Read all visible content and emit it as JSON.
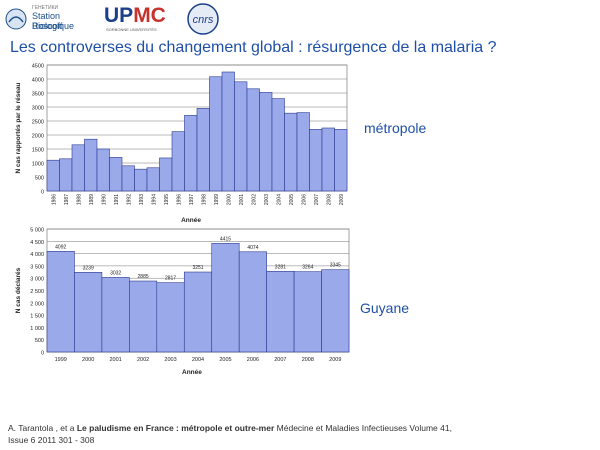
{
  "header": {
    "logo_sbr": {
      "line1": "Station Biologique",
      "line2": "Roscoff",
      "small": "ГЕНЕТИКИ"
    },
    "logo_upmc": {
      "text": "UPMC",
      "sub": "SORBONNE UNIVERSITÉS"
    },
    "logo_cnrs": {
      "text": "cnrs"
    }
  },
  "title": "Les controverses du changement global : résurgence de la malaria ?",
  "labels": {
    "metropole": "métropole",
    "guyane": "Guyane"
  },
  "citation": {
    "authors": "A.  Tarantola ,  et a",
    "title": "Le paludisme en France : métropole et outre-mer",
    "journal": "Médecine et Maladies Infectieuses Volume 41,",
    "issue": "Issue 6 2011 301 - 308"
  },
  "colors": {
    "bar_fill": "#9aa9ea",
    "bar_stroke": "#2b3a8f",
    "title": "#1f4fa8"
  },
  "chart_data": [
    {
      "type": "bar",
      "title": "",
      "xlabel": "Année",
      "ylabel": "N cas rapportés par le réseau",
      "ylim": [
        0,
        4500
      ],
      "yticks": [
        0,
        500,
        1000,
        1500,
        2000,
        2500,
        3000,
        3500,
        4000,
        4500
      ],
      "ytick_labels": [
        "0",
        "500",
        "1000",
        "1500",
        "2000",
        "2500",
        "3000",
        "3500",
        "4000",
        "4500"
      ],
      "grid": true,
      "categories": [
        "1986",
        "1987",
        "1988",
        "1989",
        "1990",
        "1991",
        "1992",
        "1993",
        "1994",
        "1995",
        "1996",
        "1997",
        "1998",
        "1999",
        "2000",
        "2001",
        "2002",
        "2003",
        "2004",
        "2005",
        "2006",
        "2007",
        "2008",
        "2009"
      ],
      "values": [
        1100,
        1150,
        1650,
        1850,
        1500,
        1200,
        900,
        780,
        830,
        1180,
        2120,
        2700,
        2950,
        4080,
        4250,
        3900,
        3650,
        3520,
        3300,
        2780,
        2800,
        2200,
        2250,
        2200
      ]
    },
    {
      "type": "bar",
      "title": "",
      "xlabel": "Année",
      "ylabel": "N cas déclarés",
      "ylim": [
        0,
        5000
      ],
      "yticks": [
        0,
        500,
        1000,
        1500,
        2000,
        2500,
        3000,
        3500,
        4000,
        4500,
        5000
      ],
      "ytick_labels": [
        "0",
        "500",
        "1 000",
        "1 500",
        "2 000",
        "2 500",
        "3 000",
        "3 500",
        "4 000",
        "4 500",
        "5 000"
      ],
      "grid": true,
      "categories": [
        "1999",
        "2000",
        "2001",
        "2002",
        "2003",
        "2004",
        "2005",
        "2006",
        "2007",
        "2008",
        "2009"
      ],
      "values": [
        4092,
        3239,
        3032,
        2885,
        2817,
        3251,
        4415,
        4074,
        3281,
        3264,
        3345
      ],
      "data_labels": [
        "4092",
        "3239",
        "3032",
        "2885",
        "2817",
        "3251",
        "4415",
        "4074",
        "3281",
        "3264",
        "3345"
      ]
    }
  ]
}
